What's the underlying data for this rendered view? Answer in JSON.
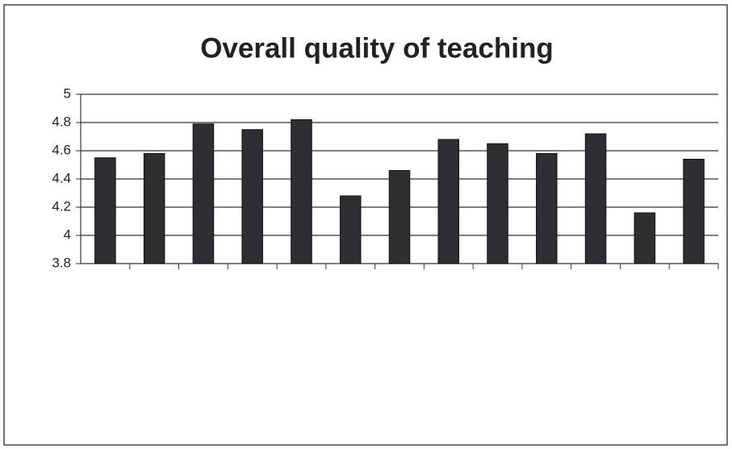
{
  "chart_data": {
    "type": "bar",
    "title": "Overall quality of teaching",
    "categories": [
      null,
      null,
      null,
      null,
      null,
      null,
      null,
      null,
      null,
      null,
      null,
      null,
      null
    ],
    "values": [
      4.55,
      4.58,
      4.79,
      4.75,
      4.82,
      4.28,
      4.46,
      4.68,
      4.65,
      4.58,
      4.72,
      4.16,
      4.54
    ],
    "color": "#2e2e33",
    "ylim": [
      3.8,
      5
    ],
    "yticks": [
      3.8,
      4,
      4.2,
      4.4,
      4.6,
      4.8,
      5
    ],
    "grid": true
  }
}
